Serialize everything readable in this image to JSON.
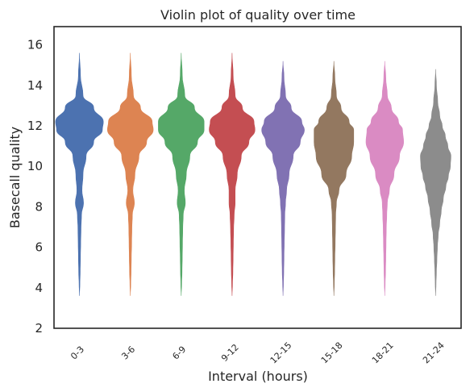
{
  "chart_data": {
    "type": "violin",
    "title": "Violin plot of quality over time",
    "xlabel": "Interval (hours)",
    "ylabel": "Basecall quality",
    "ylim": [
      2,
      16.9
    ],
    "yticks": [
      2,
      4,
      6,
      8,
      10,
      12,
      14,
      16
    ],
    "grid": false,
    "legend": "none",
    "categories": [
      "0-3",
      "3-6",
      "6-9",
      "9-12",
      "12-15",
      "15-18",
      "18-21",
      "21-24"
    ],
    "colors": [
      "#4c72b0",
      "#dd8452",
      "#55a868",
      "#c44e52",
      "#8172b3",
      "#937860",
      "#da8bc3",
      "#8c8c8c"
    ],
    "series": [
      {
        "values": [
          15.6,
          14.5,
          13.5,
          12.9,
          12.2,
          11.8,
          11.2,
          10.5,
          9.6,
          8.8,
          8.2,
          7.6,
          6.9,
          6.2,
          5.5,
          4.8,
          4.2,
          3.6
        ],
        "half_widths": [
          0.0,
          0.02,
          0.07,
          0.28,
          0.47,
          0.45,
          0.28,
          0.13,
          0.07,
          0.05,
          0.08,
          0.04,
          0.03,
          0.025,
          0.02,
          0.015,
          0.008,
          0.0
        ]
      },
      {
        "values": [
          15.6,
          14.5,
          13.5,
          12.9,
          12.2,
          11.8,
          11.2,
          10.5,
          9.6,
          8.8,
          8.2,
          7.6,
          6.9,
          6.2,
          5.5,
          4.8,
          4.2,
          3.6
        ],
        "half_widths": [
          0.0,
          0.02,
          0.06,
          0.2,
          0.43,
          0.45,
          0.32,
          0.17,
          0.09,
          0.05,
          0.08,
          0.04,
          0.03,
          0.025,
          0.02,
          0.015,
          0.008,
          0.0
        ]
      },
      {
        "values": [
          15.6,
          14.5,
          13.5,
          12.9,
          12.2,
          11.8,
          11.2,
          10.5,
          9.6,
          8.8,
          8.2,
          7.6,
          6.9,
          6.2,
          5.5,
          4.8,
          4.2,
          3.6
        ],
        "half_widths": [
          0.0,
          0.02,
          0.07,
          0.26,
          0.45,
          0.45,
          0.32,
          0.17,
          0.1,
          0.06,
          0.08,
          0.04,
          0.03,
          0.025,
          0.02,
          0.015,
          0.008,
          0.0
        ]
      },
      {
        "values": [
          15.6,
          14.5,
          13.5,
          12.9,
          12.2,
          11.8,
          11.2,
          10.5,
          9.6,
          8.8,
          8.2,
          7.6,
          6.9,
          6.2,
          5.5,
          4.8,
          4.2,
          3.6
        ],
        "half_widths": [
          0.0,
          0.02,
          0.06,
          0.2,
          0.43,
          0.45,
          0.33,
          0.18,
          0.1,
          0.06,
          0.06,
          0.04,
          0.03,
          0.025,
          0.02,
          0.015,
          0.008,
          0.0
        ]
      },
      {
        "values": [
          15.2,
          14.4,
          13.5,
          12.9,
          12.2,
          11.8,
          11.2,
          10.5,
          9.6,
          8.8,
          8.2,
          7.6,
          6.9,
          6.2,
          5.5,
          4.8,
          4.2,
          3.6
        ],
        "half_widths": [
          0.0,
          0.02,
          0.05,
          0.16,
          0.37,
          0.42,
          0.34,
          0.2,
          0.12,
          0.07,
          0.05,
          0.035,
          0.03,
          0.025,
          0.02,
          0.015,
          0.008,
          0.0
        ]
      },
      {
        "values": [
          15.2,
          14.4,
          13.5,
          12.9,
          12.2,
          11.8,
          11.2,
          10.5,
          9.6,
          8.8,
          8.2,
          7.6,
          6.9,
          6.2,
          5.5,
          4.8,
          4.2,
          3.6
        ],
        "half_widths": [
          0.0,
          0.02,
          0.05,
          0.14,
          0.3,
          0.39,
          0.39,
          0.35,
          0.24,
          0.1,
          0.05,
          0.035,
          0.03,
          0.025,
          0.02,
          0.015,
          0.008,
          0.0
        ]
      },
      {
        "values": [
          15.2,
          14.4,
          13.5,
          12.9,
          12.2,
          11.8,
          11.2,
          10.5,
          9.6,
          8.8,
          8.2,
          7.6,
          6.9,
          6.2,
          5.5,
          4.8,
          4.2,
          3.6
        ],
        "half_widths": [
          0.0,
          0.02,
          0.05,
          0.13,
          0.27,
          0.35,
          0.37,
          0.29,
          0.18,
          0.09,
          0.05,
          0.04,
          0.03,
          0.025,
          0.02,
          0.015,
          0.008,
          0.0
        ]
      },
      {
        "values": [
          14.8,
          14.0,
          13.2,
          12.5,
          12.0,
          11.5,
          11.0,
          10.5,
          10.0,
          9.5,
          9.0,
          8.4,
          7.8,
          7.2,
          6.6,
          6.0,
          5.4,
          4.8,
          4.2,
          3.6
        ],
        "half_widths": [
          0.0,
          0.015,
          0.04,
          0.08,
          0.13,
          0.19,
          0.24,
          0.3,
          0.29,
          0.25,
          0.2,
          0.15,
          0.11,
          0.08,
          0.05,
          0.035,
          0.025,
          0.015,
          0.008,
          0.0
        ]
      }
    ]
  }
}
